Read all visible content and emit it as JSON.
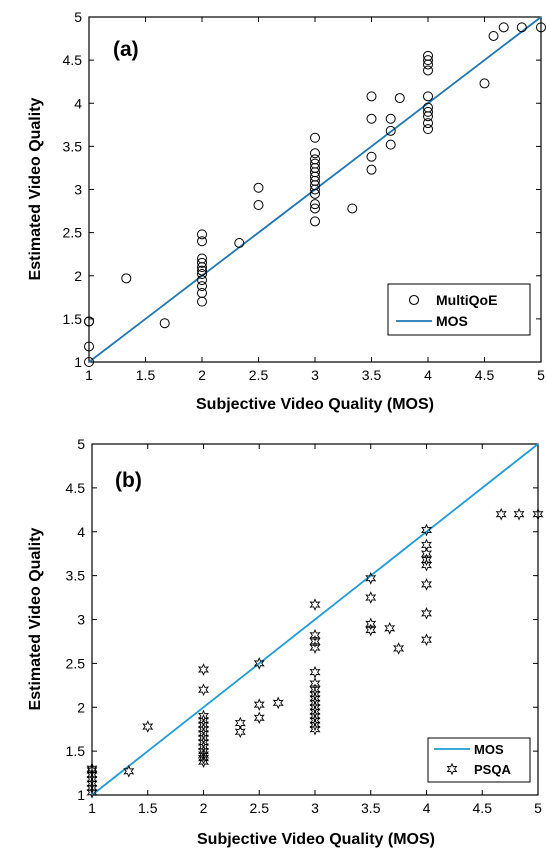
{
  "chart_data": [
    {
      "type": "scatter",
      "panel_label": "(a)",
      "xlabel": "Subjective Video Quality (MOS)",
      "ylabel": "Estimated Video Quality",
      "xlim": [
        1,
        5
      ],
      "ylim": [
        1,
        5
      ],
      "xticks": [
        "1",
        "1.5",
        "2",
        "2.5",
        "3",
        "3.5",
        "4",
        "4.5",
        "5"
      ],
      "yticks": [
        "1",
        "1.5",
        "2",
        "2.5",
        "3",
        "3.5",
        "4",
        "4.5",
        "5"
      ],
      "grid": false,
      "legend_position": "bottom-right",
      "legend_order": [
        "MultiQoE",
        "MOS"
      ],
      "series": [
        {
          "name": "MultiQoE",
          "kind": "scatter",
          "marker": "circle",
          "color": "#000000",
          "points": [
            [
              1,
              1.0
            ],
            [
              1,
              1.18
            ],
            [
              1,
              1.47
            ],
            [
              1,
              1.47
            ],
            [
              1.33,
              1.97
            ],
            [
              1.67,
              1.45
            ],
            [
              2,
              1.7
            ],
            [
              2,
              1.8
            ],
            [
              2,
              1.88
            ],
            [
              2,
              1.95
            ],
            [
              2,
              2.02
            ],
            [
              2,
              2.06
            ],
            [
              2,
              2.1
            ],
            [
              2,
              2.15
            ],
            [
              2,
              2.2
            ],
            [
              2,
              2.4
            ],
            [
              2,
              2.48
            ],
            [
              2.33,
              2.38
            ],
            [
              2.5,
              2.82
            ],
            [
              2.5,
              3.02
            ],
            [
              3,
              2.63
            ],
            [
              3,
              2.78
            ],
            [
              3,
              2.83
            ],
            [
              3,
              2.95
            ],
            [
              3,
              3.0
            ],
            [
              3,
              3.05
            ],
            [
              3,
              3.1
            ],
            [
              3,
              3.15
            ],
            [
              3,
              3.2
            ],
            [
              3,
              3.25
            ],
            [
              3,
              3.3
            ],
            [
              3,
              3.35
            ],
            [
              3,
              3.42
            ],
            [
              3,
              3.6
            ],
            [
              3.33,
              2.78
            ],
            [
              3.5,
              3.23
            ],
            [
              3.5,
              3.38
            ],
            [
              3.5,
              3.82
            ],
            [
              3.5,
              4.08
            ],
            [
              3.67,
              3.52
            ],
            [
              3.67,
              3.68
            ],
            [
              3.67,
              3.82
            ],
            [
              3.75,
              4.06
            ],
            [
              4,
              3.7
            ],
            [
              4,
              3.77
            ],
            [
              4,
              3.85
            ],
            [
              4,
              3.9
            ],
            [
              4,
              3.95
            ],
            [
              4,
              4.08
            ],
            [
              4,
              4.38
            ],
            [
              4,
              4.45
            ],
            [
              4,
              4.5
            ],
            [
              4,
              4.55
            ],
            [
              4.5,
              4.23
            ],
            [
              4.58,
              4.78
            ],
            [
              4.67,
              4.88
            ],
            [
              4.83,
              4.88
            ],
            [
              5,
              4.88
            ]
          ]
        },
        {
          "name": "MOS",
          "kind": "line",
          "color": "#1f77b4",
          "x": [
            1,
            5
          ],
          "y": [
            1,
            5
          ]
        }
      ]
    },
    {
      "type": "scatter",
      "panel_label": "(b)",
      "xlabel": "Subjective Video Quality (MOS)",
      "ylabel": "Estimated Video Quality",
      "xlim": [
        1,
        5
      ],
      "ylim": [
        1,
        5
      ],
      "xticks": [
        "1",
        "1.5",
        "2",
        "2.5",
        "3",
        "3.5",
        "4",
        "4.5",
        "5"
      ],
      "yticks": [
        "1",
        "1.5",
        "2",
        "2.5",
        "3",
        "3.5",
        "4",
        "4.5",
        "5"
      ],
      "grid": false,
      "legend_position": "bottom-right",
      "legend_order": [
        "MOS",
        "PSQA"
      ],
      "series": [
        {
          "name": "MOS",
          "kind": "line",
          "color": "#1f9bd7",
          "x": [
            1,
            5
          ],
          "y": [
            1,
            5
          ]
        },
        {
          "name": "PSQA",
          "kind": "scatter",
          "marker": "hexagram",
          "color": "#000000",
          "points": [
            [
              1,
              1.03
            ],
            [
              1,
              1.08
            ],
            [
              1,
              1.13
            ],
            [
              1,
              1.18
            ],
            [
              1,
              1.23
            ],
            [
              1,
              1.28
            ],
            [
              1,
              1.3
            ],
            [
              1.33,
              1.27
            ],
            [
              1.5,
              1.78
            ],
            [
              2,
              1.38
            ],
            [
              2,
              1.42
            ],
            [
              2,
              1.46
            ],
            [
              2,
              1.5
            ],
            [
              2,
              1.55
            ],
            [
              2,
              1.6
            ],
            [
              2,
              1.65
            ],
            [
              2,
              1.7
            ],
            [
              2,
              1.75
            ],
            [
              2,
              1.8
            ],
            [
              2,
              1.85
            ],
            [
              2,
              1.9
            ],
            [
              2,
              2.2
            ],
            [
              2,
              2.43
            ],
            [
              2.33,
              1.72
            ],
            [
              2.33,
              1.82
            ],
            [
              2.5,
              1.88
            ],
            [
              2.5,
              2.03
            ],
            [
              2.5,
              2.5
            ],
            [
              2.67,
              2.05
            ],
            [
              3,
              1.75
            ],
            [
              3,
              1.8
            ],
            [
              3,
              1.85
            ],
            [
              3,
              1.9
            ],
            [
              3,
              1.95
            ],
            [
              3,
              2.0
            ],
            [
              3,
              2.05
            ],
            [
              3,
              2.1
            ],
            [
              3,
              2.15
            ],
            [
              3,
              2.2
            ],
            [
              3,
              2.27
            ],
            [
              3,
              2.4
            ],
            [
              3,
              2.68
            ],
            [
              3,
              2.75
            ],
            [
              3,
              2.82
            ],
            [
              3,
              3.17
            ],
            [
              3.5,
              2.88
            ],
            [
              3.5,
              2.95
            ],
            [
              3.5,
              3.25
            ],
            [
              3.5,
              3.47
            ],
            [
              3.67,
              2.9
            ],
            [
              3.75,
              2.67
            ],
            [
              4,
              2.77
            ],
            [
              4,
              3.07
            ],
            [
              4,
              3.4
            ],
            [
              4,
              3.62
            ],
            [
              4,
              3.68
            ],
            [
              4,
              3.75
            ],
            [
              4,
              3.85
            ],
            [
              4,
              4.02
            ],
            [
              4.67,
              4.2
            ],
            [
              4.83,
              4.2
            ],
            [
              5,
              4.2
            ]
          ]
        }
      ]
    }
  ]
}
